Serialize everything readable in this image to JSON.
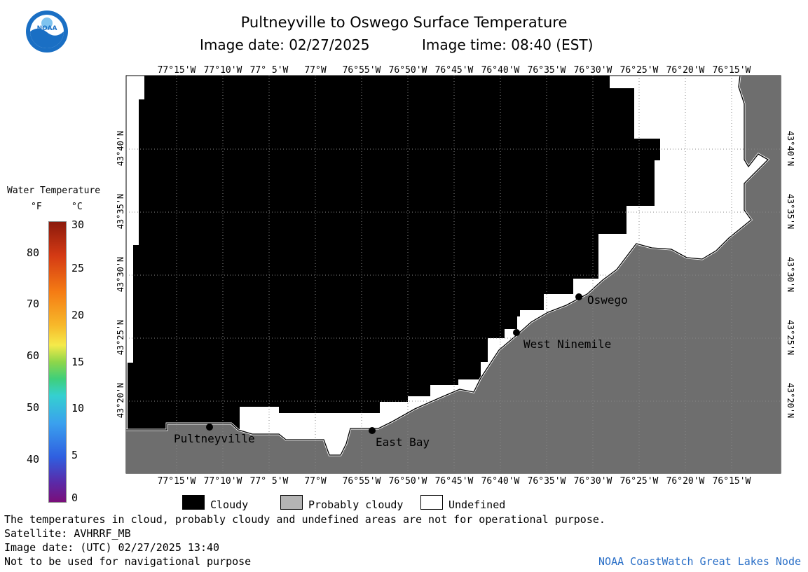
{
  "title": "Pultneyville to Oswego Surface Temperature",
  "subtitle_date": "Image date: 02/27/2025",
  "subtitle_time": "Image time: 08:40 (EST)",
  "logo": {
    "text": "NOAA",
    "colors": {
      "blue": "#1a6fc4",
      "light": "#7fc3ef"
    }
  },
  "colorbar": {
    "title": "Water Temperature",
    "unit_f": "°F",
    "unit_c": "°C",
    "f_ticks": [
      "80",
      "70",
      "60",
      "50",
      "40"
    ],
    "c_ticks": [
      "30",
      "25",
      "20",
      "15",
      "10",
      "5",
      "0"
    ]
  },
  "map": {
    "lon_labels": [
      "77°15'W",
      "77°10'W",
      "77° 5'W",
      "77°W",
      "76°55'W",
      "76°50'W",
      "76°45'W",
      "76°40'W",
      "76°35'W",
      "76°30'W",
      "76°25'W",
      "76°20'W",
      "76°15'W"
    ],
    "lat_labels": [
      "43°40'N",
      "43°35'N",
      "43°30'N",
      "43°25'N",
      "43°20'N"
    ],
    "colors": {
      "cloudy": "#000000",
      "land": "#6e6e6e",
      "undefined": "#ffffff",
      "probably_cloudy": "#b4b4b4"
    },
    "places": [
      {
        "name": "Pultneyville"
      },
      {
        "name": "East Bay"
      },
      {
        "name": "West Ninemile"
      },
      {
        "name": "Oswego"
      }
    ]
  },
  "legend": {
    "cloudy": "Cloudy",
    "probably_cloudy": "Probably cloudy",
    "undefined": "Undefined"
  },
  "footer": {
    "note": "The temperatures in cloud, probably cloudy and undefined areas are not for operational purpose.",
    "satellite": "Satellite: AVHRRF_MB",
    "utc_date": "Image date: (UTC) 02/27/2025  13:40",
    "nav": "Not to be used for navigational purpose",
    "credit": "NOAA CoastWatch Great Lakes Node"
  }
}
